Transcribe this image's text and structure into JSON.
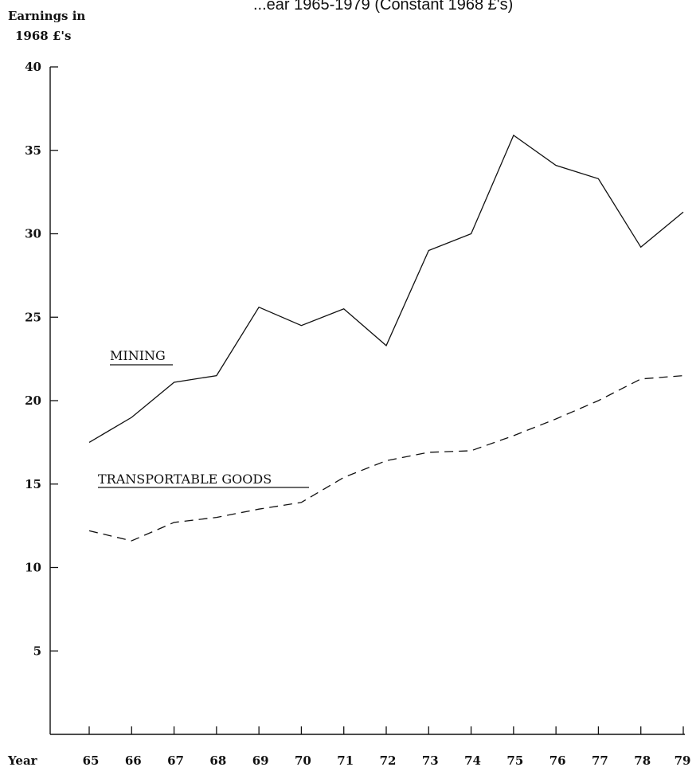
{
  "chart_data": {
    "type": "line",
    "title_fragment": "...ear 1965-1979 (Constant 1968 £'s)",
    "ylabel_line1": "Earnings in",
    "ylabel_line2": "1968 £'s",
    "xlabel": "Year",
    "ylim": [
      0,
      40
    ],
    "xlim": [
      1965,
      1979
    ],
    "yticks": [
      5,
      10,
      15,
      20,
      25,
      30,
      35,
      40
    ],
    "x": [
      1965,
      1966,
      1967,
      1968,
      1969,
      1970,
      1971,
      1972,
      1973,
      1974,
      1975,
      1976,
      1977,
      1978,
      1979
    ],
    "xtick_labels": [
      "65",
      "66",
      "67",
      "68",
      "69",
      "70",
      "71",
      "72",
      "73",
      "74",
      "75",
      "76",
      "77",
      "78",
      "79"
    ],
    "grid": false,
    "series": [
      {
        "name": "MINING",
        "style": "solid",
        "color": "#111111",
        "values": [
          17.5,
          19.0,
          21.1,
          21.5,
          25.6,
          24.5,
          25.5,
          23.3,
          29.0,
          30.0,
          35.9,
          34.1,
          33.3,
          29.2,
          31.3
        ]
      },
      {
        "name": "TRANSPORTABLE GOODS",
        "style": "dashed",
        "color": "#111111",
        "values": [
          12.2,
          11.6,
          12.7,
          13.0,
          13.5,
          13.9,
          15.4,
          16.4,
          16.9,
          17.0,
          17.9,
          18.9,
          20.0,
          21.3,
          21.5
        ]
      }
    ]
  }
}
